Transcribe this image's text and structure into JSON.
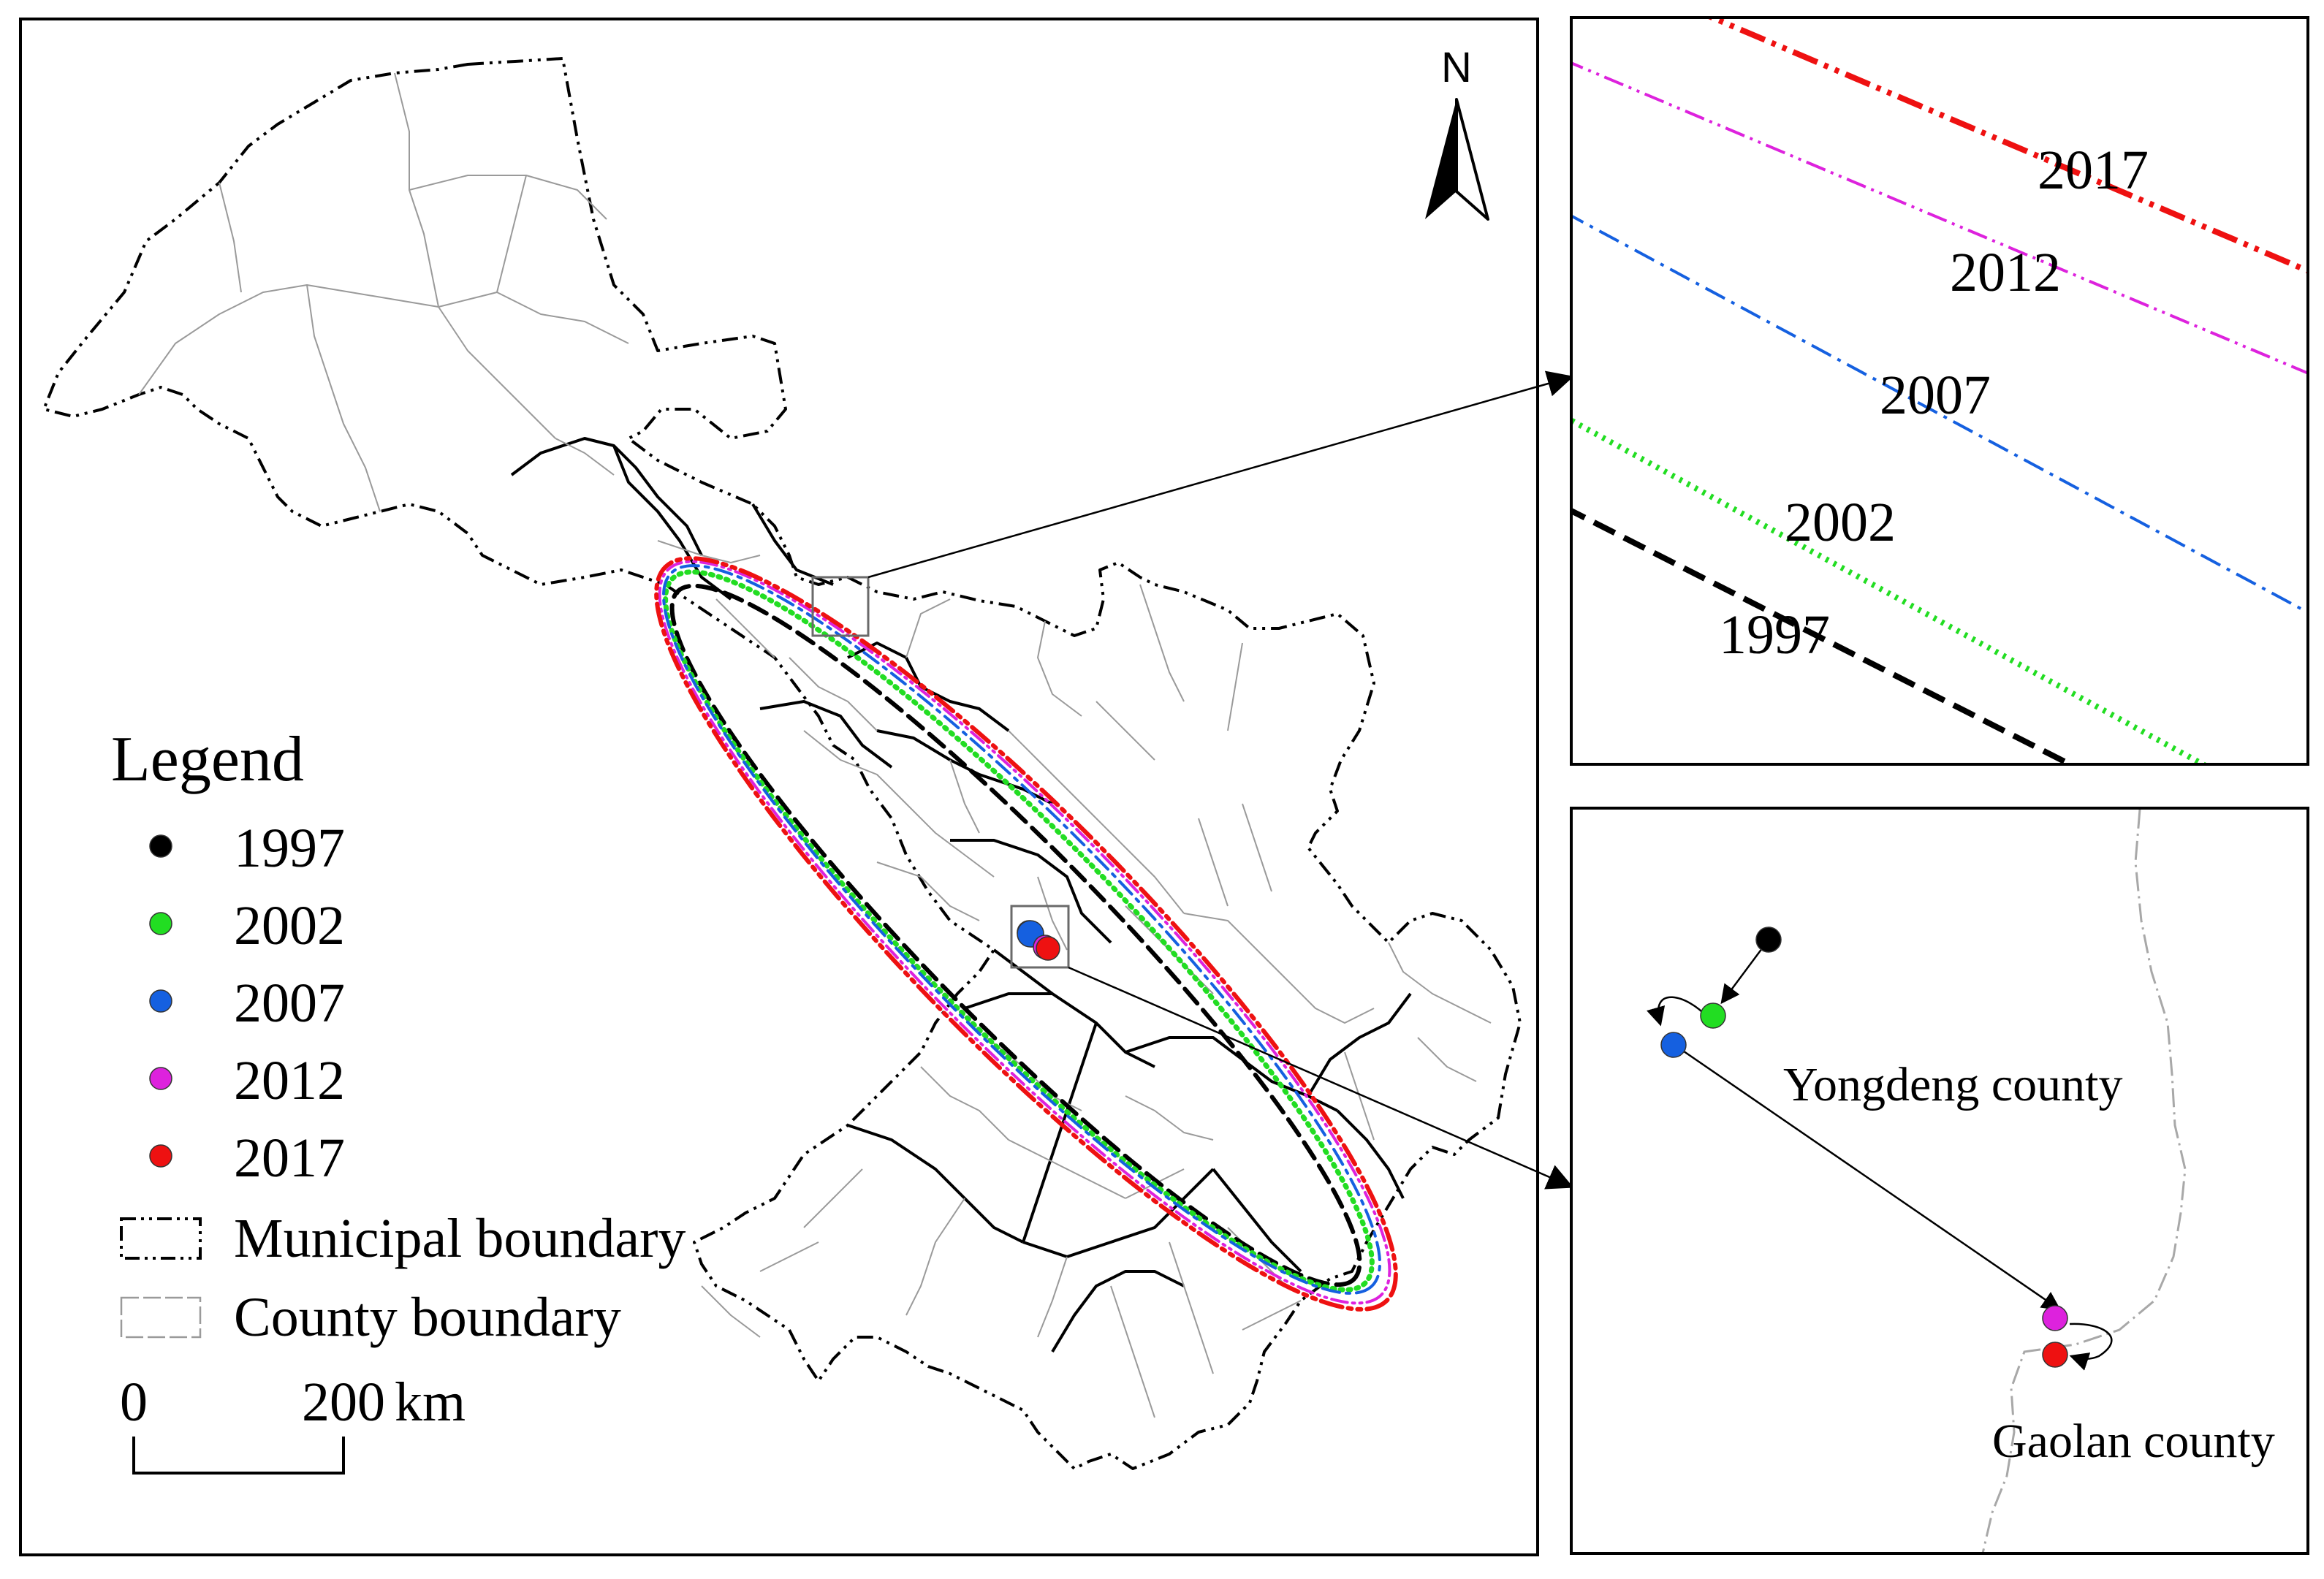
{
  "north_label": "N",
  "legend": {
    "title": "Legend",
    "points": [
      {
        "label": "1997",
        "color": "#000000"
      },
      {
        "label": "2002",
        "color": "#22dd22"
      },
      {
        "label": "2007",
        "color": "#1560e0"
      },
      {
        "label": "2012",
        "color": "#dd22dd"
      },
      {
        "label": "2017",
        "color": "#ee1111"
      }
    ],
    "municipal_boundary": "Municipal boundary",
    "county_boundary": "County boundary"
  },
  "scale_bar": {
    "start": "0",
    "end": "200",
    "unit": "km"
  },
  "ellipses": [
    {
      "year": "1997",
      "color": "#000000",
      "style": "dashed"
    },
    {
      "year": "2002",
      "color": "#22dd22",
      "style": "dotted"
    },
    {
      "year": "2007",
      "color": "#1560e0",
      "style": "dash-dot"
    },
    {
      "year": "2012",
      "color": "#dd22dd",
      "style": "dash-dot-dot"
    },
    {
      "year": "2017",
      "color": "#ee1111",
      "style": "dash-dot-dot"
    }
  ],
  "inset_top": {
    "labels": [
      "2017",
      "2012",
      "2007",
      "2002",
      "1997"
    ]
  },
  "inset_bottom": {
    "counties": [
      "Yongdeng county",
      "Gaolan county"
    ]
  }
}
